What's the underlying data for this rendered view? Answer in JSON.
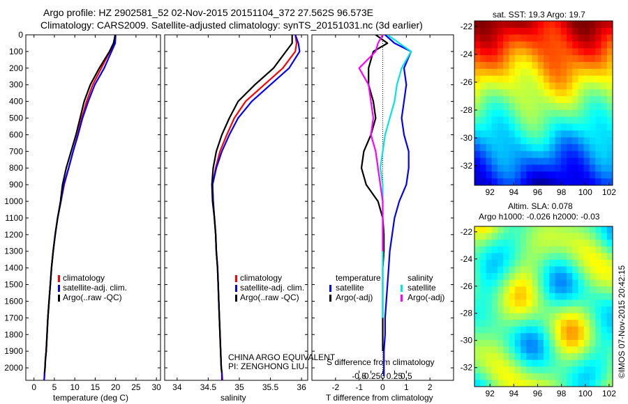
{
  "title_line1": "Argo profile: HZ 2902581_52 02-Nov-2015 20151104_372 27.562S 96.573E",
  "title_line2": "Climatology: CARS2009. Satellite-adjusted climatology: synTS_20151031.nc (3d earlier)",
  "colors": {
    "climatology": "#ff0000",
    "satellite_adj": "#0000ff",
    "argo": "#000000",
    "satellite_sal": "#00e5e5",
    "argo_sal": "#ff00ff"
  },
  "depth_axis": {
    "range": [
      2075,
      0
    ],
    "ticks": [
      0,
      100,
      200,
      300,
      400,
      500,
      600,
      700,
      800,
      900,
      1000,
      1100,
      1200,
      1300,
      1400,
      1500,
      1600,
      1700,
      1800,
      1900,
      2000
    ]
  },
  "panel_temp": {
    "xlabel": "temperature (deg C)",
    "xlim": [
      -2,
      31
    ],
    "xticks": [
      0,
      5,
      10,
      15,
      20,
      25,
      30
    ],
    "legend": [
      "climatology",
      "satellite-adj. clim.",
      "Argo(..raw -QC)"
    ]
  },
  "panel_sal": {
    "xlabel": "salinity",
    "xlim": [
      33.8,
      36.1
    ],
    "xticks": [
      34,
      34.5,
      35,
      35.5,
      36
    ],
    "legend": [
      "climatology",
      "satellite-adj. clim.",
      "Argo(..raw -QC)"
    ],
    "note1": "CHINA ARGO EQUIVALENT",
    "note2": "PI: ZENGHONG LIU"
  },
  "panel_diff": {
    "xlabel": "T difference from climatology",
    "top_xlabel": "S difference from climatology",
    "xlim": [
      -3,
      3
    ],
    "xticks": [
      -2,
      -1,
      0,
      1,
      2
    ],
    "s_ticks": [
      "-0.5",
      "-0.25",
      "0",
      "0.25",
      "0.5"
    ],
    "legend_temp_title": "temperature",
    "legend_sal_title": "salinity",
    "legend_temp": [
      "satellite",
      "Argo(-adj)"
    ],
    "legend_sal": [
      "satellite",
      "Argo(-adj)"
    ]
  },
  "map_sst": {
    "title": "sat. SST: 19.3  Argo: 19.7",
    "xticks": [
      92,
      94,
      96,
      98,
      100,
      102
    ],
    "yticks": [
      -22,
      -24,
      -26,
      -28,
      -30,
      -32
    ]
  },
  "map_sla": {
    "title1": "Altim. SLA: 0.078",
    "title2": "Argo h1000: -0.026  h2000: -0.03",
    "xticks": [
      92,
      94,
      96,
      98,
      100,
      102
    ],
    "yticks": [
      -22,
      -24,
      -26,
      -28,
      -30,
      -32
    ]
  },
  "watermark": "©IMOS 07-Nov-2015 20:42:15",
  "chart_data": [
    {
      "type": "line",
      "xlabel": "temperature (deg C)",
      "ylabel": "",
      "xlim": [
        -2,
        31
      ],
      "ylim": [
        2075,
        0
      ],
      "series": [
        {
          "name": "climatology",
          "x": [
            19.9,
            19.6,
            18.6,
            16.5,
            14.4,
            12.9,
            11.7,
            10.7,
            9.6,
            8.5,
            7.4,
            6.6,
            5.8,
            5.2,
            4.7,
            4.3,
            4.0,
            3.7,
            3.4,
            3.2,
            3.0,
            2.8,
            2.7,
            2.6,
            2.5
          ],
          "y": [
            0,
            50,
            100,
            200,
            300,
            400,
            500,
            600,
            700,
            800,
            900,
            1000,
            1100,
            1200,
            1300,
            1400,
            1500,
            1600,
            1700,
            1800,
            1900,
            1950,
            2000,
            2030,
            2075
          ]
        },
        {
          "name": "satellite-adj. clim.",
          "x": [
            20.0,
            19.9,
            19.0,
            17.2,
            14.9,
            13.3,
            11.9,
            10.8,
            9.6,
            8.5,
            7.3,
            6.6,
            5.8,
            5.2,
            4.7,
            4.3,
            4.0,
            3.7,
            3.4,
            3.2,
            3.0,
            2.8,
            2.7,
            2.6,
            2.5
          ],
          "y": [
            0,
            50,
            100,
            200,
            300,
            400,
            500,
            600,
            700,
            800,
            900,
            1000,
            1100,
            1200,
            1300,
            1400,
            1500,
            1600,
            1700,
            1800,
            1900,
            1950,
            2000,
            2030,
            2075
          ]
        },
        {
          "name": "Argo(..raw -QC)",
          "x": [
            19.9,
            19.5,
            18.5,
            16.0,
            13.8,
            12.3,
            11.3,
            10.3,
            9.1,
            7.9,
            7.0,
            6.5,
            5.8,
            5.2,
            4.7,
            4.3,
            4.0,
            3.7,
            3.4,
            3.2,
            3.0,
            2.8,
            2.7,
            2.6
          ],
          "y": [
            0,
            50,
            100,
            200,
            300,
            400,
            500,
            600,
            700,
            800,
            900,
            1000,
            1100,
            1200,
            1300,
            1400,
            1500,
            1600,
            1700,
            1800,
            1900,
            1950,
            2000,
            2030
          ]
        }
      ]
    },
    {
      "type": "line",
      "xlabel": "salinity",
      "ylabel": "",
      "xlim": [
        33.8,
        36.1
      ],
      "ylim": [
        2075,
        0
      ],
      "series": [
        {
          "name": "climatology",
          "x": [
            35.9,
            35.92,
            35.9,
            35.7,
            35.4,
            35.1,
            34.92,
            34.8,
            34.69,
            34.62,
            34.57,
            34.58,
            34.6,
            34.62,
            34.63,
            34.65,
            34.66,
            34.67,
            34.68,
            34.69,
            34.7,
            34.71,
            34.72,
            34.73
          ],
          "y": [
            0,
            50,
            100,
            200,
            300,
            400,
            500,
            600,
            700,
            800,
            900,
            1000,
            1100,
            1200,
            1300,
            1400,
            1500,
            1600,
            1700,
            1800,
            1900,
            2000,
            2030,
            2075
          ]
        },
        {
          "name": "satellite-adj. clim.",
          "x": [
            35.9,
            35.95,
            35.97,
            35.8,
            35.5,
            35.2,
            34.98,
            34.84,
            34.72,
            34.63,
            34.57,
            34.58,
            34.6,
            34.62,
            34.63,
            34.65,
            34.66,
            34.67,
            34.68,
            34.69,
            34.7,
            34.71,
            34.72,
            34.72
          ],
          "y": [
            0,
            50,
            100,
            200,
            300,
            400,
            500,
            600,
            700,
            800,
            900,
            1000,
            1100,
            1200,
            1300,
            1400,
            1500,
            1600,
            1700,
            1800,
            1900,
            2000,
            2030,
            2075
          ]
        },
        {
          "name": "Argo(..raw -QC)",
          "x": [
            35.85,
            35.85,
            35.75,
            35.55,
            35.25,
            34.98,
            34.84,
            34.72,
            34.63,
            34.58,
            34.56,
            34.57,
            34.6,
            34.62,
            34.63,
            34.65,
            34.66,
            34.67,
            34.68,
            34.69,
            34.7,
            34.71,
            34.72
          ],
          "y": [
            0,
            50,
            100,
            200,
            300,
            400,
            500,
            600,
            700,
            800,
            900,
            1000,
            1100,
            1200,
            1300,
            1400,
            1500,
            1600,
            1700,
            1800,
            1900,
            2000,
            2030
          ]
        }
      ]
    },
    {
      "type": "line",
      "xlabel": "T difference from climatology",
      "ylabel": "",
      "xlim": [
        -3,
        3
      ],
      "ylim": [
        2075,
        0
      ],
      "series": [
        {
          "name": "satellite (temperature)",
          "x": [
            0.1,
            0.5,
            1.2,
            0.9,
            1.0,
            0.9,
            0.8,
            0.9,
            1.1,
            1.1,
            1.0,
            0.7,
            0.5,
            0.4,
            0.3,
            0.25,
            0.2,
            0.15,
            0.1,
            0.1,
            0.05,
            0.05
          ],
          "y": [
            0,
            50,
            100,
            200,
            300,
            400,
            500,
            600,
            700,
            800,
            900,
            1000,
            1100,
            1200,
            1300,
            1400,
            1500,
            1600,
            1700,
            1800,
            1900,
            2050
          ]
        },
        {
          "name": "Argo(-adj) (temperature)",
          "x": [
            -0.3,
            0.2,
            -0.4,
            -0.6,
            -0.6,
            -0.4,
            -0.3,
            -0.5,
            -0.8,
            -0.9,
            -0.7,
            -0.2,
            0.0,
            0.05,
            0.05,
            0.0,
            0.0,
            0.0,
            0.0,
            0.0,
            0.0
          ],
          "y": [
            0,
            50,
            100,
            200,
            300,
            400,
            500,
            600,
            700,
            800,
            900,
            1000,
            1100,
            1200,
            1300,
            1400,
            1500,
            1600,
            1700,
            1800,
            1900
          ]
        },
        {
          "name": "satellite (salinity)",
          "x": [
            0.2,
            0.7,
            1.2,
            0.8,
            0.6,
            0.5,
            0.3,
            0.1,
            0.0,
            -0.1,
            0.0,
            0.0,
            0.0,
            0.0,
            0.0,
            0.0,
            0.0,
            0.0,
            0.0
          ],
          "y": [
            0,
            50,
            100,
            200,
            300,
            400,
            500,
            600,
            700,
            800,
            900,
            1000,
            1100,
            1200,
            1300,
            1400,
            1500,
            1600,
            1700
          ]
        },
        {
          "name": "Argo(-adj) (salinity)",
          "x": [
            0.0,
            -0.2,
            -0.3,
            -1.0,
            -0.6,
            -0.5,
            -0.4,
            -0.5,
            -0.3,
            -0.2,
            -0.1,
            0.0,
            0.0,
            0.0,
            0.0
          ],
          "y": [
            0,
            50,
            100,
            200,
            300,
            400,
            500,
            600,
            700,
            800,
            900,
            1000,
            1100,
            1200,
            1300
          ]
        }
      ]
    },
    {
      "type": "heatmap",
      "title": "sat. SST: 19.3  Argo: 19.7",
      "xlim": [
        90.7,
        102.3
      ],
      "ylim": [
        -33.4,
        -21.6
      ],
      "colormap": "jet"
    },
    {
      "type": "heatmap",
      "title": "Altim. SLA: 0.078",
      "xlim": [
        90.7,
        102.3
      ],
      "ylim": [
        -33.4,
        -21.6
      ],
      "colormap": "jet"
    }
  ]
}
